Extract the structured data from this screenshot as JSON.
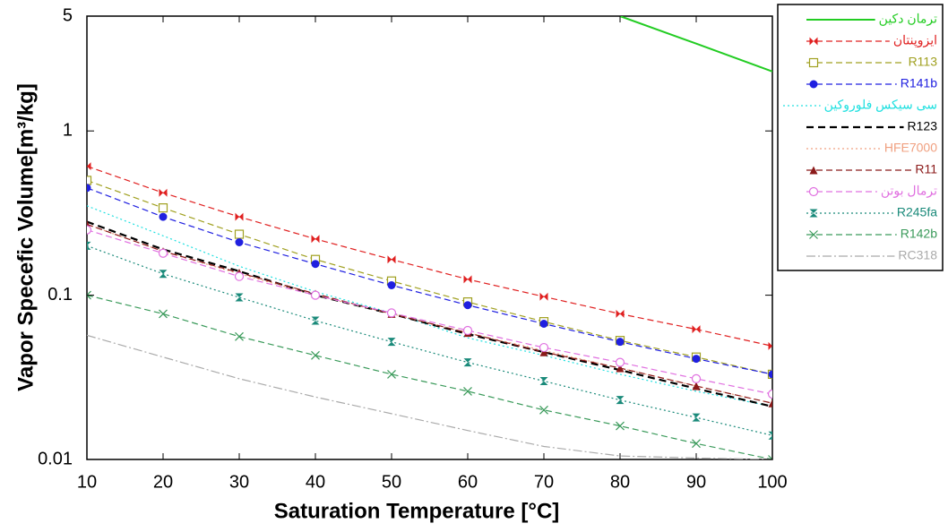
{
  "chart_data": {
    "type": "line",
    "log_y": true,
    "x_label": "Saturation Temperature [°C]",
    "y_label": "Vapor Specefic Volume[m³/kg]",
    "x": [
      10,
      20,
      30,
      40,
      50,
      60,
      70,
      80,
      90,
      100
    ],
    "xlim": [
      10,
      100
    ],
    "xticks": [
      10,
      20,
      30,
      40,
      50,
      60,
      70,
      80,
      90,
      100
    ],
    "ylim": [
      0.01,
      5
    ],
    "yticks": [
      0.01,
      0.1,
      1,
      5
    ],
    "legend": "outside-right",
    "series": [
      {
        "name": "ترمان دکین",
        "color": "#22cc22",
        "dash": "solid",
        "marker": "none",
        "values": [
          null,
          null,
          null,
          null,
          null,
          null,
          null,
          5,
          3.4,
          2.3
        ]
      },
      {
        "name": "ایزوپنتان",
        "color": "#e02020",
        "dash": "dashed",
        "marker": "bowtie",
        "values": [
          0.61,
          0.42,
          0.3,
          0.22,
          0.165,
          0.125,
          0.098,
          0.077,
          0.062,
          0.049
        ]
      },
      {
        "name": "R113",
        "color": "#a0a020",
        "dash": "dashed",
        "marker": "square-open",
        "values": [
          0.5,
          0.34,
          0.235,
          0.165,
          0.122,
          0.091,
          0.069,
          0.053,
          0.042,
          0.033
        ]
      },
      {
        "name": "R141b",
        "color": "#2020e0",
        "dash": "dashed",
        "marker": "circle",
        "values": [
          0.45,
          0.3,
          0.21,
          0.155,
          0.115,
          0.087,
          0.067,
          0.052,
          0.041,
          0.033
        ]
      },
      {
        "name": "سی سیکس فلوروکین",
        "color": "#20e0e0",
        "dash": "dotted",
        "marker": "none",
        "values": [
          0.35,
          0.23,
          0.15,
          0.105,
          0.078,
          0.055,
          0.043,
          0.033,
          0.026,
          0.021
        ]
      },
      {
        "name": "R123",
        "color": "#000000",
        "dash": "bold-dashed",
        "marker": "none",
        "values": [
          0.28,
          0.19,
          0.14,
          0.1,
          0.077,
          0.058,
          0.045,
          0.035,
          0.027,
          0.021
        ]
      },
      {
        "name": "HFE7000",
        "color": "#f0a080",
        "dash": "dotted",
        "marker": "none",
        "values": [
          0.27,
          0.185,
          0.135,
          0.1,
          0.077,
          0.059,
          0.046,
          0.036,
          0.028,
          0.022
        ]
      },
      {
        "name": "R11",
        "color": "#8b1a1a",
        "dash": "dashed",
        "marker": "triangle",
        "values": [
          0.27,
          0.185,
          0.137,
          0.102,
          0.077,
          0.059,
          0.045,
          0.036,
          0.028,
          0.022
        ]
      },
      {
        "name": "ترمال بوتن",
        "color": "#e070e0",
        "dash": "dashed",
        "marker": "circle-open",
        "values": [
          0.25,
          0.18,
          0.13,
          0.1,
          0.078,
          0.061,
          0.048,
          0.039,
          0.031,
          0.025
        ]
      },
      {
        "name": "R245fa",
        "color": "#1a8a7a",
        "dash": "dotted",
        "marker": "hourglass",
        "values": [
          0.2,
          0.135,
          0.097,
          0.07,
          0.052,
          0.039,
          0.03,
          0.023,
          0.018,
          0.014
        ]
      },
      {
        "name": "R142b",
        "color": "#3a9a5a",
        "dash": "dashed",
        "marker": "cross",
        "values": [
          0.1,
          0.077,
          0.056,
          0.043,
          0.033,
          0.026,
          0.02,
          0.016,
          0.0125,
          0.01
        ]
      },
      {
        "name": "RC318",
        "color": "#aaaaaa",
        "dash": "dashdot",
        "marker": "none",
        "values": [
          0.057,
          0.042,
          0.031,
          0.024,
          0.019,
          0.015,
          0.012,
          0.0105,
          0.0102,
          0.01
        ]
      }
    ]
  }
}
